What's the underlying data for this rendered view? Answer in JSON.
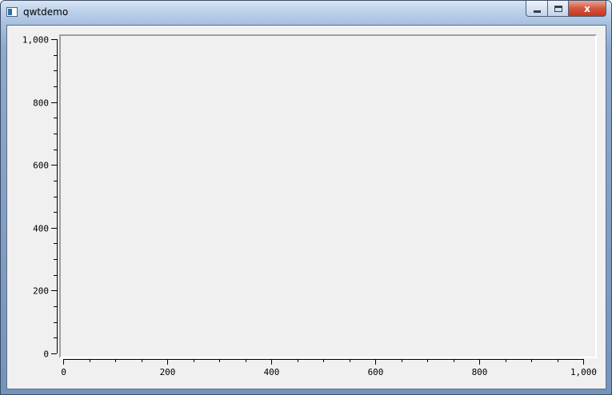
{
  "window": {
    "title": "qwtdemo",
    "close_glyph": "x"
  },
  "chart_data": {
    "type": "scatter",
    "title": "",
    "xlabel": "",
    "ylabel": "",
    "xlim": [
      0,
      1000
    ],
    "ylim": [
      0,
      1000
    ],
    "x_major_ticks": [
      0,
      200,
      400,
      600,
      800,
      1000
    ],
    "y_major_ticks": [
      0,
      200,
      400,
      600,
      800,
      1000
    ],
    "x_tick_labels": [
      "0",
      "200",
      "400",
      "600",
      "800",
      "1,000"
    ],
    "y_tick_labels": [
      "0",
      "200",
      "400",
      "600",
      "800",
      "1,000"
    ],
    "minor_tick_step": 50,
    "grid": false,
    "series": []
  }
}
